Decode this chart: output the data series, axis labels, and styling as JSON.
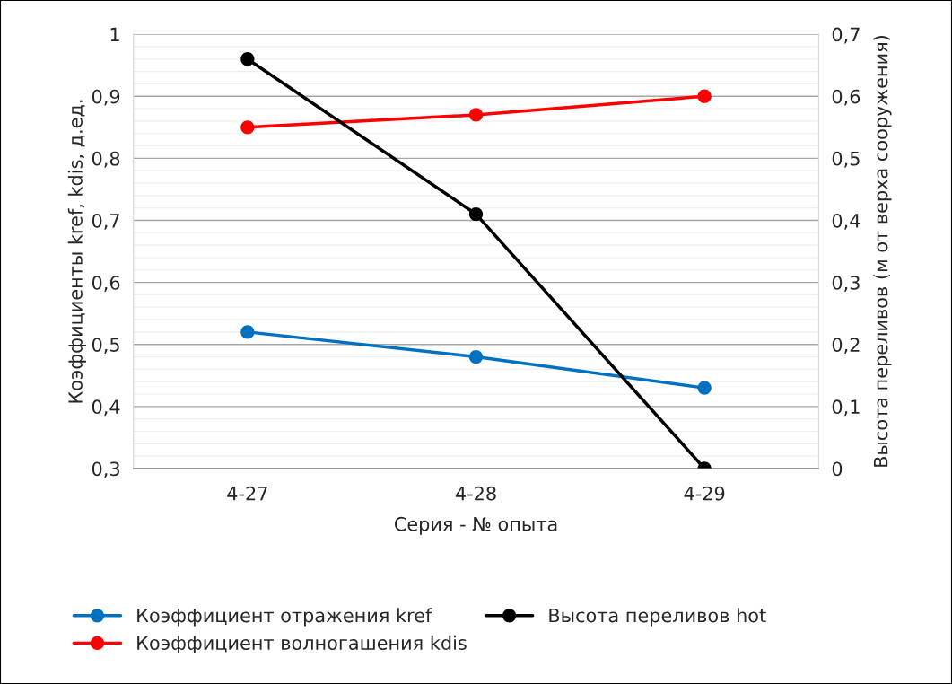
{
  "chart_data": {
    "type": "line",
    "xlabel": "Серия - № опыта",
    "ylabel": "Коэффициенты kref, kdis, д.ед.",
    "y2label": "Высота переливов (м от верха сооружения)",
    "categories": [
      "4-27",
      "4-28",
      "4-29"
    ],
    "series": [
      {
        "name": "Коэффициент отражения kref",
        "color": "#0070c0",
        "values": [
          0.52,
          0.48,
          0.43
        ]
      },
      {
        "name": "Коэффициент волногашения kdis",
        "color": "#ff0000",
        "values": [
          0.85,
          0.87,
          0.9
        ]
      },
      {
        "name": "Высота переливов hot",
        "color": "#000000",
        "values": [
          0.66,
          0.41,
          0.0
        ],
        "axis": "y2"
      }
    ],
    "ylim": [
      0.3,
      1
    ],
    "yticks": [
      {
        "value": 0.3,
        "label": "0,3"
      },
      {
        "value": 0.4,
        "label": "0,4"
      },
      {
        "value": 0.5,
        "label": "0,5"
      },
      {
        "value": 0.6,
        "label": "0,6"
      },
      {
        "value": 0.7,
        "label": "0,7"
      },
      {
        "value": 0.8,
        "label": "0,8"
      },
      {
        "value": 0.9,
        "label": "0,9"
      },
      {
        "value": 1,
        "label": "1"
      }
    ],
    "y2lim": [
      0,
      0.7
    ],
    "y2ticks": [
      0,
      {
        "value": 0.1,
        "label": "0,1"
      },
      {
        "value": 0.2,
        "label": "0,2"
      },
      {
        "value": 0.3,
        "label": "0,3"
      },
      {
        "value": 0.4,
        "label": "0,4"
      },
      {
        "value": 0.5,
        "label": "0,5"
      },
      {
        "value": 0.6,
        "label": "0,6"
      },
      {
        "value": 0.7,
        "label": "0,7"
      }
    ],
    "grid": "y",
    "legend": "bottom",
    "marker": "circle",
    "line_style": "solid"
  }
}
